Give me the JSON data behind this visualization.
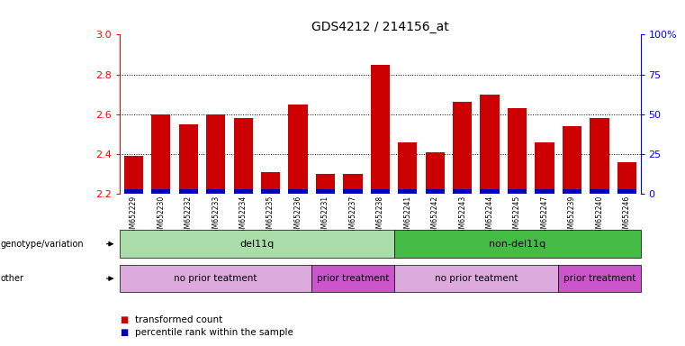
{
  "title": "GDS4212 / 214156_at",
  "samples": [
    "GSM652229",
    "GSM652230",
    "GSM652232",
    "GSM652233",
    "GSM652234",
    "GSM652235",
    "GSM652236",
    "GSM652231",
    "GSM652237",
    "GSM652238",
    "GSM652241",
    "GSM652242",
    "GSM652243",
    "GSM652244",
    "GSM652245",
    "GSM652247",
    "GSM652239",
    "GSM652240",
    "GSM652246"
  ],
  "red_values": [
    2.39,
    2.6,
    2.55,
    2.6,
    2.58,
    2.31,
    2.65,
    2.3,
    2.3,
    2.85,
    2.46,
    2.41,
    2.66,
    2.7,
    2.63,
    2.46,
    2.54,
    2.58,
    2.36
  ],
  "blue_heights": [
    0.022,
    0.022,
    0.022,
    0.022,
    0.022,
    0.022,
    0.022,
    0.022,
    0.022,
    0.022,
    0.022,
    0.022,
    0.022,
    0.022,
    0.022,
    0.022,
    0.022,
    0.022,
    0.022
  ],
  "ymin": 2.2,
  "ymax": 3.0,
  "yticks": [
    2.2,
    2.4,
    2.6,
    2.8,
    3.0
  ],
  "y2ticks_values": [
    0,
    25,
    50,
    75,
    100
  ],
  "y2ticks_labels": [
    "0",
    "25",
    "50",
    "75",
    "100%"
  ],
  "bar_color_red": "#cc0000",
  "bar_color_blue": "#0000bb",
  "genotype_groups": [
    {
      "label": "del11q",
      "start": 0,
      "end": 9,
      "color": "#aaddaa"
    },
    {
      "label": "non-del11q",
      "start": 10,
      "end": 18,
      "color": "#44bb44"
    }
  ],
  "other_groups": [
    {
      "label": "no prior teatment",
      "start": 0,
      "end": 6,
      "color": "#ddaadd"
    },
    {
      "label": "prior treatment",
      "start": 7,
      "end": 9,
      "color": "#cc55cc"
    },
    {
      "label": "no prior teatment",
      "start": 10,
      "end": 15,
      "color": "#ddaadd"
    },
    {
      "label": "prior treatment",
      "start": 16,
      "end": 18,
      "color": "#cc55cc"
    }
  ],
  "legend_items": [
    {
      "label": "transformed count",
      "color": "#cc0000"
    },
    {
      "label": "percentile rank within the sample",
      "color": "#0000bb"
    }
  ],
  "bar_width": 0.7,
  "grid_lines": [
    2.4,
    2.6,
    2.8
  ]
}
